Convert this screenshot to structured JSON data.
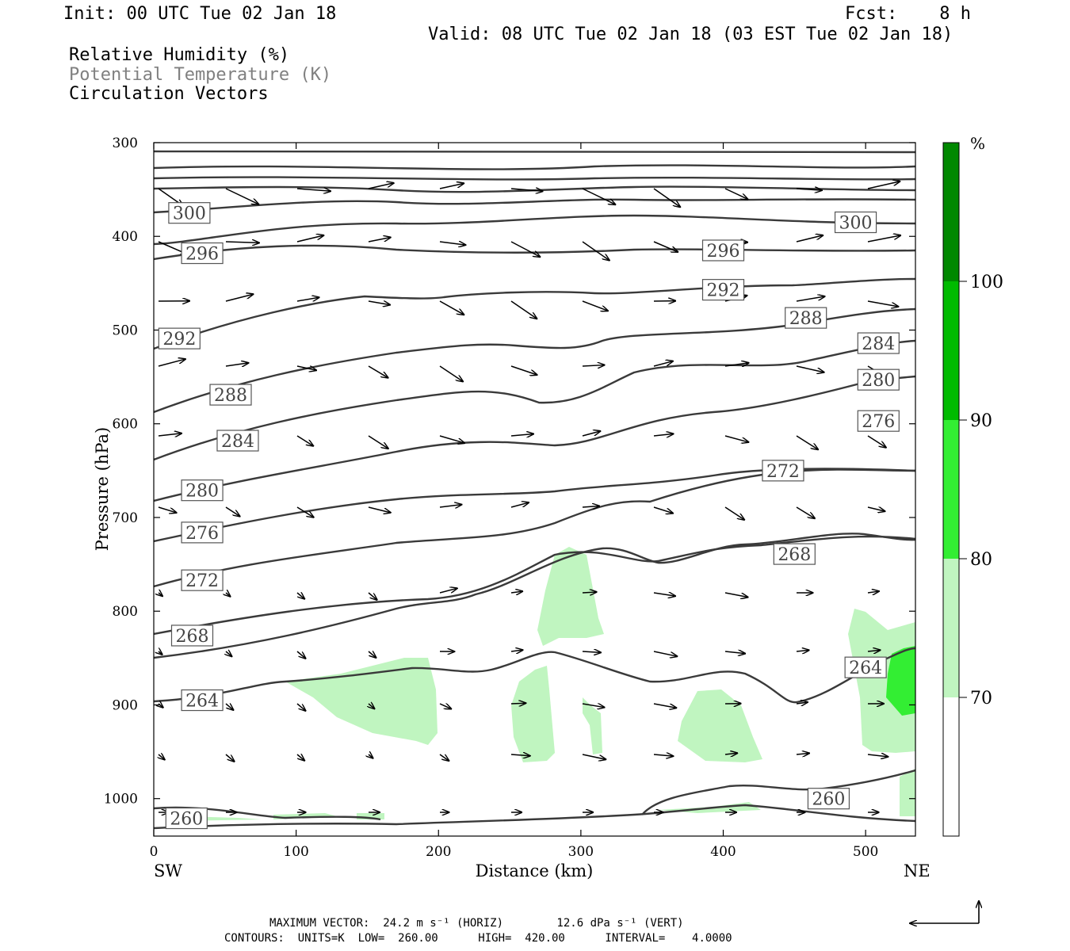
{
  "header": {
    "init": "Init: 00 UTC Tue 02 Jan 18",
    "fcst": "Fcst:    8 h",
    "valid": "Valid: 08 UTC Tue 02 Jan 18 (03 EST Tue 02 Jan 18)",
    "legend_rh": "Relative Humidity (%)",
    "legend_theta": "Potential Temperature (K)",
    "legend_circ": "Circulation Vectors"
  },
  "footer": {
    "max_vector": "MAXIMUM VECTOR:  24.2 m s⁻¹ (HORIZ)        12.6 dPa s⁻¹ (VERT)",
    "contours": "CONTOURS:  UNITS=K  LOW=  260.00      HIGH=  420.00      INTERVAL=    4.0000"
  },
  "colors": {
    "rh70": "#c0f5c0",
    "rh80": "#33ee33",
    "rh90": "#00bb00",
    "rh100": "#008800",
    "contour": "#3a3a3a"
  },
  "chart_data": {
    "type": "cross-section",
    "xlabel": "Distance (km)",
    "ylabel": "Pressure (hPa)",
    "xlim": [
      0,
      535
    ],
    "ylim": [
      1040,
      300
    ],
    "x_ticks": [
      "0",
      "100",
      "200",
      "300",
      "400",
      "500"
    ],
    "y_ticks": [
      "300",
      "400",
      "500",
      "600",
      "700",
      "800",
      "900",
      "1000"
    ],
    "x_left_label": "SW",
    "x_right_label": "NE",
    "colorbar": {
      "unit": "%",
      "levels": [
        "70",
        "80",
        "90",
        "100"
      ]
    },
    "contour_labels": [
      {
        "label": "300",
        "x": 25,
        "p": 375
      },
      {
        "label": "300",
        "x": 493,
        "p": 385
      },
      {
        "label": "296",
        "x": 34,
        "p": 418
      },
      {
        "label": "296",
        "x": 400,
        "p": 415
      },
      {
        "label": "292",
        "x": 400,
        "p": 457
      },
      {
        "label": "292",
        "x": 18,
        "p": 509
      },
      {
        "label": "288",
        "x": 458,
        "p": 487
      },
      {
        "label": "284",
        "x": 509,
        "p": 514
      },
      {
        "label": "288",
        "x": 54,
        "p": 569
      },
      {
        "label": "280",
        "x": 509,
        "p": 553
      },
      {
        "label": "284",
        "x": 59,
        "p": 618
      },
      {
        "label": "276",
        "x": 509,
        "p": 597
      },
      {
        "label": "272",
        "x": 442,
        "p": 650
      },
      {
        "label": "280",
        "x": 34,
        "p": 671
      },
      {
        "label": "276",
        "x": 34,
        "p": 716
      },
      {
        "label": "268",
        "x": 450,
        "p": 739
      },
      {
        "label": "272",
        "x": 34,
        "p": 767
      },
      {
        "label": "268",
        "x": 27,
        "p": 826
      },
      {
        "label": "264",
        "x": 500,
        "p": 860
      },
      {
        "label": "264",
        "x": 34,
        "p": 895
      },
      {
        "label": "260",
        "x": 474,
        "p": 1000
      },
      {
        "label": "260",
        "x": 23,
        "p": 1021
      }
    ]
  }
}
